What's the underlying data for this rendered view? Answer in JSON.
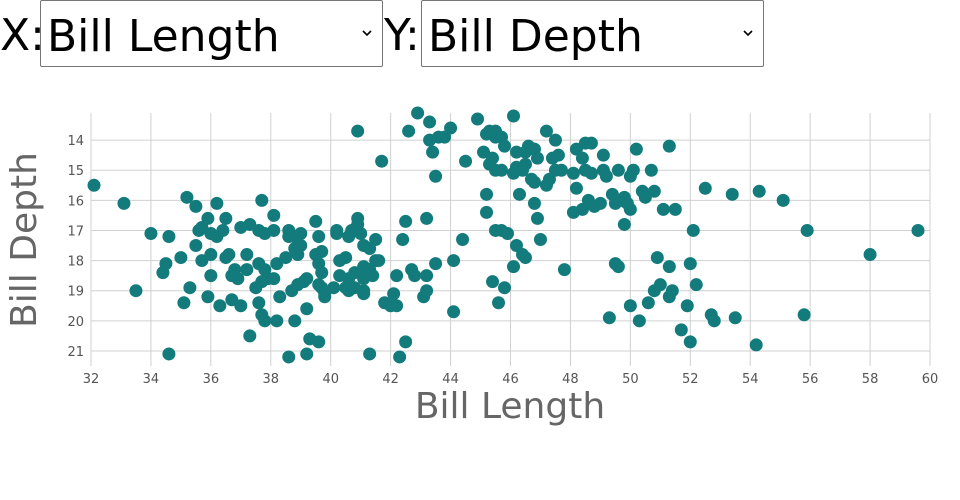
{
  "controls": {
    "x_label": "X:",
    "x_value": "Bill Length",
    "y_label": "Y:",
    "y_value": "Bill Depth"
  },
  "chart_data": {
    "type": "scatter",
    "xlabel": "Bill Length",
    "ylabel": "Bill Depth",
    "xlim": [
      32,
      60
    ],
    "ylim": [
      21.5,
      13.1
    ],
    "y_inverted": true,
    "grid": true,
    "point_color": "#137b7b",
    "x_ticks": [
      32,
      34,
      36,
      38,
      40,
      42,
      44,
      46,
      48,
      50,
      52,
      54,
      56,
      58,
      60
    ],
    "y_ticks": [
      14,
      15,
      16,
      17,
      18,
      19,
      20,
      21
    ],
    "points": [
      [
        32.1,
        15.5
      ],
      [
        33.1,
        16.1
      ],
      [
        33.5,
        19.0
      ],
      [
        34.0,
        17.1
      ],
      [
        34.4,
        18.4
      ],
      [
        34.5,
        18.1
      ],
      [
        34.6,
        17.2
      ],
      [
        34.6,
        21.1
      ],
      [
        35.0,
        17.9
      ],
      [
        35.1,
        19.4
      ],
      [
        35.2,
        15.9
      ],
      [
        35.3,
        18.9
      ],
      [
        35.5,
        16.2
      ],
      [
        35.5,
        17.5
      ],
      [
        35.6,
        17.0
      ],
      [
        35.7,
        16.9
      ],
      [
        35.7,
        18.0
      ],
      [
        35.9,
        16.6
      ],
      [
        35.9,
        19.2
      ],
      [
        36.0,
        17.1
      ],
      [
        36.0,
        17.8
      ],
      [
        36.0,
        18.5
      ],
      [
        36.2,
        16.1
      ],
      [
        36.2,
        17.2
      ],
      [
        36.3,
        19.5
      ],
      [
        36.4,
        17.0
      ],
      [
        36.5,
        16.6
      ],
      [
        36.5,
        17.9
      ],
      [
        36.6,
        17.8
      ],
      [
        36.7,
        18.5
      ],
      [
        36.7,
        19.3
      ],
      [
        36.8,
        18.3
      ],
      [
        36.9,
        18.6
      ],
      [
        37.0,
        16.9
      ],
      [
        37.0,
        19.5
      ],
      [
        37.2,
        17.8
      ],
      [
        37.2,
        18.3
      ],
      [
        37.3,
        20.5
      ],
      [
        37.3,
        16.8
      ],
      [
        37.5,
        18.9
      ],
      [
        37.6,
        17.0
      ],
      [
        37.6,
        18.1
      ],
      [
        37.6,
        19.4
      ],
      [
        37.7,
        16.0
      ],
      [
        37.7,
        18.7
      ],
      [
        37.7,
        19.8
      ],
      [
        37.8,
        17.1
      ],
      [
        37.8,
        18.3
      ],
      [
        37.8,
        20.0
      ],
      [
        37.9,
        18.6
      ],
      [
        38.1,
        16.5
      ],
      [
        38.1,
        17.0
      ],
      [
        38.1,
        18.6
      ],
      [
        38.2,
        18.1
      ],
      [
        38.2,
        20.0
      ],
      [
        38.3,
        19.2
      ],
      [
        38.5,
        17.9
      ],
      [
        38.6,
        17.0
      ],
      [
        38.6,
        17.2
      ],
      [
        38.6,
        21.2
      ],
      [
        38.7,
        19.0
      ],
      [
        38.8,
        17.2
      ],
      [
        38.8,
        17.6
      ],
      [
        38.8,
        20.0
      ],
      [
        38.9,
        17.8
      ],
      [
        38.9,
        18.8
      ],
      [
        39.0,
        17.1
      ],
      [
        39.0,
        17.5
      ],
      [
        39.1,
        18.7
      ],
      [
        39.2,
        18.6
      ],
      [
        39.2,
        19.6
      ],
      [
        39.2,
        21.1
      ],
      [
        39.3,
        20.6
      ],
      [
        39.5,
        16.7
      ],
      [
        39.5,
        17.8
      ],
      [
        39.6,
        17.2
      ],
      [
        39.6,
        18.1
      ],
      [
        39.6,
        18.8
      ],
      [
        39.6,
        20.7
      ],
      [
        39.7,
        17.7
      ],
      [
        39.7,
        18.4
      ],
      [
        39.7,
        18.9
      ],
      [
        39.8,
        19.1
      ],
      [
        39.8,
        19.2
      ],
      [
        40.1,
        18.9
      ],
      [
        40.2,
        17.0
      ],
      [
        40.2,
        17.1
      ],
      [
        40.3,
        18.0
      ],
      [
        40.3,
        18.5
      ],
      [
        40.5,
        17.9
      ],
      [
        40.5,
        18.9
      ],
      [
        40.6,
        17.2
      ],
      [
        40.6,
        18.6
      ],
      [
        40.6,
        19.0
      ],
      [
        40.7,
        17.0
      ],
      [
        40.8,
        18.4
      ],
      [
        40.8,
        18.9
      ],
      [
        40.9,
        16.6
      ],
      [
        40.9,
        13.7
      ],
      [
        40.9,
        16.8
      ],
      [
        41.0,
        17.1
      ],
      [
        41.1,
        17.5
      ],
      [
        41.1,
        18.2
      ],
      [
        41.1,
        18.6
      ],
      [
        41.1,
        19.0
      ],
      [
        41.1,
        19.1
      ],
      [
        41.3,
        17.6
      ],
      [
        41.3,
        18.3
      ],
      [
        41.3,
        21.1
      ],
      [
        41.4,
        18.5
      ],
      [
        41.5,
        17.3
      ],
      [
        41.5,
        18.0
      ],
      [
        41.6,
        18.0
      ],
      [
        41.7,
        14.7
      ],
      [
        41.8,
        19.4
      ],
      [
        42.0,
        19.5
      ],
      [
        42.1,
        19.1
      ],
      [
        42.2,
        18.5
      ],
      [
        42.2,
        19.5
      ],
      [
        42.3,
        21.2
      ],
      [
        42.4,
        17.3
      ],
      [
        42.5,
        16.7
      ],
      [
        42.5,
        20.7
      ],
      [
        42.6,
        13.7
      ],
      [
        42.7,
        18.3
      ],
      [
        42.8,
        18.5
      ],
      [
        42.9,
        13.1
      ],
      [
        43.1,
        19.2
      ],
      [
        43.2,
        16.6
      ],
      [
        43.2,
        18.5
      ],
      [
        43.2,
        19.0
      ],
      [
        43.3,
        13.4
      ],
      [
        43.3,
        14.0
      ],
      [
        43.4,
        14.4
      ],
      [
        43.5,
        15.2
      ],
      [
        43.5,
        18.1
      ],
      [
        43.6,
        13.9
      ],
      [
        43.8,
        13.9
      ],
      [
        44.0,
        13.6
      ],
      [
        44.1,
        18.0
      ],
      [
        44.1,
        19.7
      ],
      [
        44.4,
        17.3
      ],
      [
        44.5,
        14.7
      ],
      [
        44.9,
        13.3
      ],
      [
        45.1,
        14.4
      ],
      [
        45.2,
        13.8
      ],
      [
        45.2,
        15.8
      ],
      [
        45.2,
        16.4
      ],
      [
        45.3,
        13.7
      ],
      [
        45.3,
        14.8
      ],
      [
        45.4,
        14.6
      ],
      [
        45.4,
        18.7
      ],
      [
        45.5,
        13.7
      ],
      [
        45.5,
        13.9
      ],
      [
        45.5,
        15.0
      ],
      [
        45.5,
        17.0
      ],
      [
        45.6,
        19.4
      ],
      [
        45.7,
        13.9
      ],
      [
        45.7,
        15.0
      ],
      [
        45.7,
        17.0
      ],
      [
        45.8,
        14.2
      ],
      [
        45.8,
        18.9
      ],
      [
        45.9,
        17.1
      ],
      [
        46.1,
        13.2
      ],
      [
        46.1,
        15.1
      ],
      [
        46.1,
        18.2
      ],
      [
        46.2,
        14.4
      ],
      [
        46.2,
        14.9
      ],
      [
        46.2,
        17.5
      ],
      [
        46.3,
        15.8
      ],
      [
        46.4,
        15.0
      ],
      [
        46.4,
        17.8
      ],
      [
        46.5,
        14.4
      ],
      [
        46.5,
        14.8
      ],
      [
        46.5,
        17.9
      ],
      [
        46.6,
        14.2
      ],
      [
        46.7,
        15.3
      ],
      [
        46.8,
        14.3
      ],
      [
        46.8,
        15.4
      ],
      [
        46.8,
        16.1
      ],
      [
        46.9,
        14.6
      ],
      [
        46.9,
        16.6
      ],
      [
        47.0,
        17.3
      ],
      [
        47.2,
        13.7
      ],
      [
        47.2,
        15.5
      ],
      [
        47.3,
        15.3
      ],
      [
        47.4,
        14.6
      ],
      [
        47.5,
        14.0
      ],
      [
        47.5,
        15.0
      ],
      [
        47.6,
        14.5
      ],
      [
        47.7,
        15.0
      ],
      [
        47.8,
        18.3
      ],
      [
        48.1,
        15.1
      ],
      [
        48.1,
        16.4
      ],
      [
        48.2,
        14.3
      ],
      [
        48.2,
        15.6
      ],
      [
        48.4,
        14.6
      ],
      [
        48.4,
        16.3
      ],
      [
        48.5,
        14.1
      ],
      [
        48.5,
        15.0
      ],
      [
        48.6,
        16.0
      ],
      [
        48.7,
        14.1
      ],
      [
        48.7,
        15.1
      ],
      [
        48.8,
        16.2
      ],
      [
        49.0,
        16.1
      ],
      [
        49.1,
        14.5
      ],
      [
        49.1,
        15.0
      ],
      [
        49.2,
        15.2
      ],
      [
        49.3,
        19.9
      ],
      [
        49.4,
        15.8
      ],
      [
        49.5,
        16.1
      ],
      [
        49.5,
        18.1
      ],
      [
        49.6,
        15.0
      ],
      [
        49.6,
        18.2
      ],
      [
        49.7,
        16.0
      ],
      [
        49.8,
        15.9
      ],
      [
        49.8,
        16.8
      ],
      [
        49.9,
        16.1
      ],
      [
        50.0,
        15.2
      ],
      [
        50.0,
        16.3
      ],
      [
        50.0,
        19.5
      ],
      [
        50.1,
        15.0
      ],
      [
        50.2,
        14.3
      ],
      [
        50.3,
        20.0
      ],
      [
        50.4,
        15.7
      ],
      [
        50.5,
        15.9
      ],
      [
        50.6,
        19.4
      ],
      [
        50.7,
        15.0
      ],
      [
        50.8,
        15.7
      ],
      [
        50.8,
        19.0
      ],
      [
        50.9,
        17.9
      ],
      [
        51.0,
        18.8
      ],
      [
        51.1,
        16.3
      ],
      [
        51.3,
        14.2
      ],
      [
        51.3,
        18.2
      ],
      [
        51.3,
        19.2
      ],
      [
        51.4,
        19.0
      ],
      [
        51.5,
        16.3
      ],
      [
        51.7,
        20.3
      ],
      [
        51.9,
        19.5
      ],
      [
        52.0,
        18.1
      ],
      [
        52.0,
        20.7
      ],
      [
        52.1,
        17.0
      ],
      [
        52.2,
        18.8
      ],
      [
        52.5,
        15.6
      ],
      [
        52.7,
        19.8
      ],
      [
        52.8,
        20.0
      ],
      [
        53.4,
        15.8
      ],
      [
        53.5,
        19.9
      ],
      [
        54.2,
        20.8
      ],
      [
        54.3,
        15.7
      ],
      [
        55.1,
        16.0
      ],
      [
        55.8,
        19.8
      ],
      [
        55.9,
        17.0
      ],
      [
        58.0,
        17.8
      ],
      [
        59.6,
        17.0
      ]
    ]
  }
}
